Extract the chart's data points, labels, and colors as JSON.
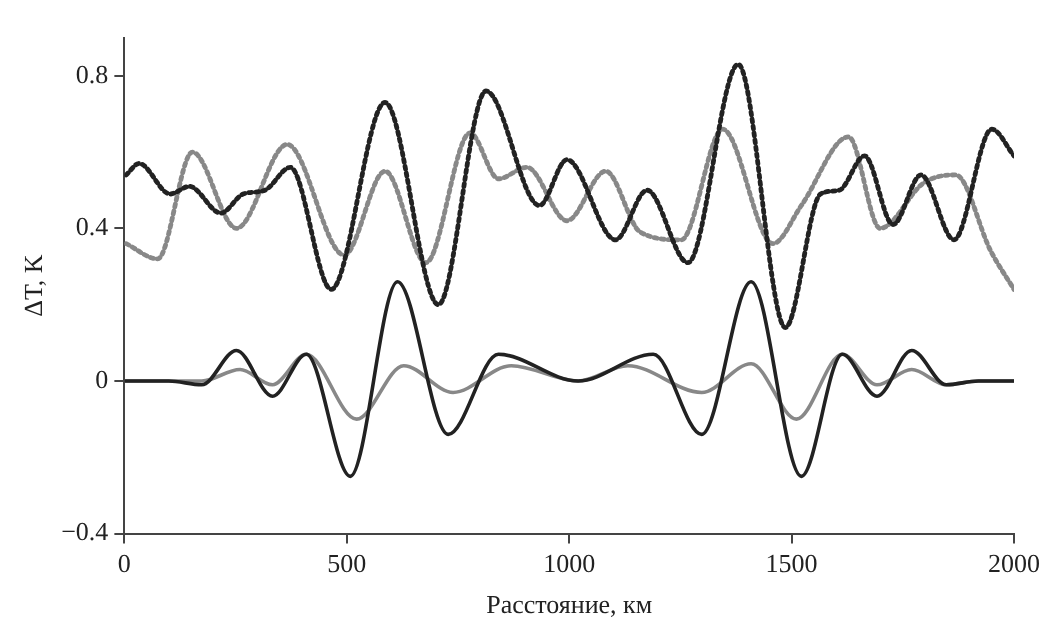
{
  "chart_data": {
    "type": "line",
    "xlabel": "Расстояние, км",
    "ylabel": "ΔT, K",
    "xlim": [
      0,
      2000
    ],
    "xticks": [
      0,
      500,
      1000,
      1500,
      2000
    ],
    "ylim": [
      -0.4,
      0.9
    ],
    "yticks": [
      {
        "value": -0.4,
        "label": "−0.4"
      },
      0,
      0.4,
      0.8
    ],
    "grid": false,
    "legend": false,
    "marker": "none",
    "series": [
      {
        "color": "#222222",
        "line_style": "dotted",
        "x": [
          4,
          33,
          103,
          146,
          217,
          267,
          316,
          373,
          465,
          586,
          706,
          813,
          933,
          995,
          1104,
          1175,
          1267,
          1380,
          1486,
          1565,
          1607,
          1664,
          1728,
          1791,
          1865,
          1950,
          2000
        ],
        "values": [
          0.54,
          0.57,
          0.49,
          0.51,
          0.44,
          0.49,
          0.5,
          0.56,
          0.24,
          0.73,
          0.2,
          0.76,
          0.46,
          0.58,
          0.37,
          0.5,
          0.31,
          0.83,
          0.14,
          0.49,
          0.5,
          0.59,
          0.41,
          0.54,
          0.37,
          0.66,
          0.59
        ]
      },
      {
        "color": "#888888",
        "line_style": "dotted",
        "x": [
          4,
          75,
          153,
          252,
          366,
          494,
          586,
          678,
          777,
          841,
          905,
          995,
          1082,
          1160,
          1252,
          1345,
          1458,
          1522,
          1628,
          1699,
          1798,
          1869,
          1948,
          2000
        ],
        "values": [
          0.36,
          0.32,
          0.6,
          0.4,
          0.62,
          0.33,
          0.55,
          0.31,
          0.65,
          0.53,
          0.56,
          0.42,
          0.55,
          0.39,
          0.37,
          0.66,
          0.36,
          0.46,
          0.64,
          0.4,
          0.52,
          0.54,
          0.34,
          0.24
        ]
      },
      {
        "color": "#222222",
        "line_style": "solid",
        "x": [
          0,
          100,
          174,
          252,
          333,
          409,
          508,
          614,
          728,
          841,
          1020,
          1189,
          1298,
          1409,
          1522,
          1614,
          1692,
          1770,
          1848,
          1920,
          2000
        ],
        "values": [
          0,
          0,
          -0.01,
          0.08,
          -0.04,
          0.07,
          -0.25,
          0.26,
          -0.14,
          0.07,
          0,
          0.07,
          -0.14,
          0.26,
          -0.25,
          0.07,
          -0.04,
          0.08,
          -0.01,
          0,
          0
        ]
      },
      {
        "color": "#888888",
        "line_style": "solid",
        "x": [
          0,
          100,
          174,
          260,
          333,
          409,
          522,
          628,
          739,
          870,
          1020,
          1132,
          1298,
          1409,
          1511,
          1614,
          1692,
          1770,
          1848,
          1920,
          2000
        ],
        "values": [
          0,
          0,
          0,
          0.03,
          -0.01,
          0.07,
          -0.1,
          0.04,
          -0.03,
          0.04,
          0,
          0.04,
          -0.03,
          0.045,
          -0.1,
          0.07,
          -0.01,
          0.03,
          -0.01,
          0,
          0
        ]
      }
    ]
  }
}
